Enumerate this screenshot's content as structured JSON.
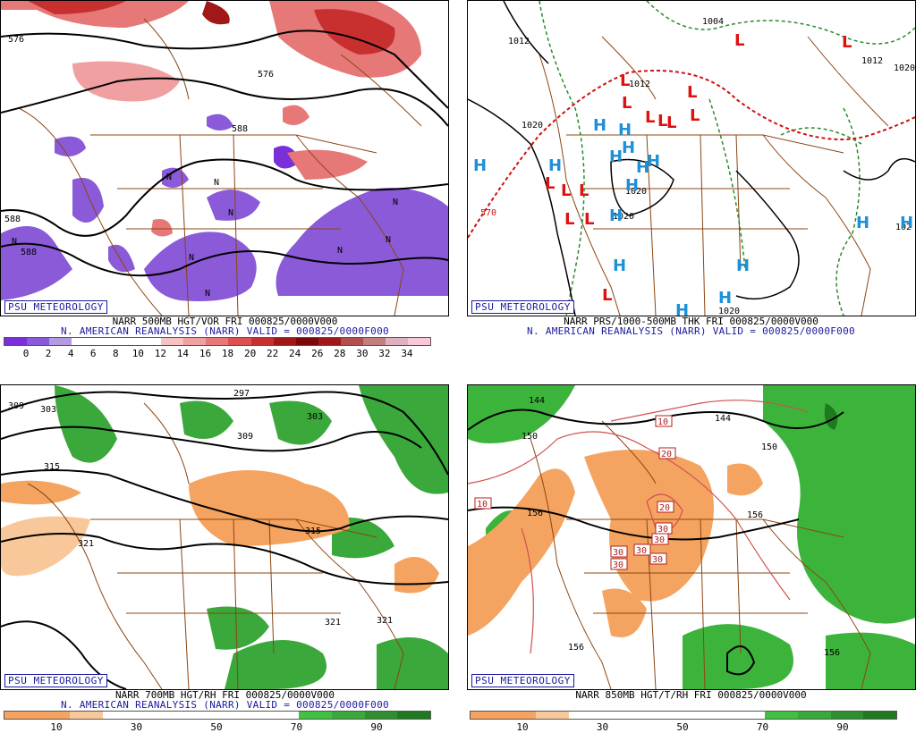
{
  "panels": {
    "tl": {
      "logo": "PSU METEOROLOGY",
      "title": "NARR 500MB HGT/VOR FRI 000825/0000V000",
      "subtitle": "N. AMERICAN REANALYSIS (NARR) VALID = 000825/0000F000",
      "colorbar": [
        "#7a2fd8",
        "#8a5ad8",
        "#b49ae0",
        "#ffffff",
        "#ffffff",
        "#ffffff",
        "#ffffff",
        "#f6c2c2",
        "#f0a0a0",
        "#e67878",
        "#dc5050",
        "#c83030",
        "#a01818",
        "#7a0a0a",
        "#a01818",
        "#b05050",
        "#c08080",
        "#e0b0c0",
        "#f8c8d8"
      ],
      "ticks": [
        "0",
        "2",
        "4",
        "6",
        "8",
        "10",
        "12",
        "14",
        "16",
        "18",
        "20",
        "22",
        "24",
        "26",
        "28",
        "30",
        "32",
        "34"
      ],
      "contour_labels": [
        "576",
        "576",
        "588",
        "588",
        "588",
        "N",
        "N",
        "N",
        "N",
        "N",
        "N",
        "N",
        "N",
        "N"
      ]
    },
    "tr": {
      "logo": "PSU METEOROLOGY",
      "title": "NARR PRS/1000-500MB THK FRI 000825/0000V000",
      "subtitle": "N. AMERICAN REANALYSIS (NARR) VALID = 000825/0000F000",
      "contour_labels": [
        "1012",
        "1004",
        "1020",
        "1020",
        "1020",
        "1020",
        "1020",
        "1012",
        "570",
        "1012",
        "102"
      ],
      "highs": [
        "H",
        "H",
        "H",
        "H",
        "H",
        "H",
        "H",
        "H",
        "H",
        "H",
        "H",
        "H",
        "H",
        "H",
        "H",
        "H"
      ],
      "lows": [
        "L",
        "L",
        "L",
        "L",
        "L",
        "L",
        "L",
        "L",
        "L",
        "L",
        "L",
        "L",
        "L",
        "L",
        "L"
      ]
    },
    "bl": {
      "logo": "PSU METEOROLOGY",
      "title": "NARR 700MB HGT/RH FRI 000825/0000V000",
      "subtitle": "N. AMERICAN REANALYSIS (NARR) VALID = 000825/0000F000",
      "colorbar": [
        "#f4a460",
        "#f4a460",
        "#f8c89a",
        "#ffffff",
        "#ffffff",
        "#ffffff",
        "#ffffff",
        "#ffffff",
        "#ffffff",
        "#42c042",
        "#3aa83a",
        "#2f8f2f",
        "#1f7a1f"
      ],
      "ticks": [
        "10",
        "30",
        "50",
        "70",
        "90"
      ],
      "contour_labels": [
        "297",
        "303",
        "309",
        "303",
        "309",
        "315",
        "321",
        "315",
        "321",
        "321"
      ]
    },
    "br": {
      "logo": "PSU METEOROLOGY",
      "title": "NARR 850MB HGT/T/RH FRI 000825/0000V000",
      "subtitle": "",
      "colorbar": [
        "#f4a460",
        "#f4a460",
        "#f8c89a",
        "#ffffff",
        "#ffffff",
        "#ffffff",
        "#ffffff",
        "#ffffff",
        "#ffffff",
        "#42c042",
        "#3aa83a",
        "#2f8f2f",
        "#1f7a1f"
      ],
      "ticks": [
        "10",
        "30",
        "50",
        "70",
        "90"
      ],
      "contour_labels": [
        "144",
        "150",
        "144",
        "150",
        "156",
        "156",
        "156",
        "156",
        "10",
        "10",
        "20",
        "20",
        "30",
        "30",
        "30",
        "30",
        "30",
        "30"
      ]
    }
  },
  "colors": {
    "map_lines": "#8b4513",
    "contour": "#000000",
    "vorticity_positive": "#e05555",
    "vorticity_negative": "#7b55d8",
    "rh_moist": "#3cb43c",
    "rh_dry": "#f4a460",
    "high_label": "#1e90d8",
    "low_label": "#e01010",
    "thickness": "#d01010",
    "isotherm": "#d05050"
  }
}
